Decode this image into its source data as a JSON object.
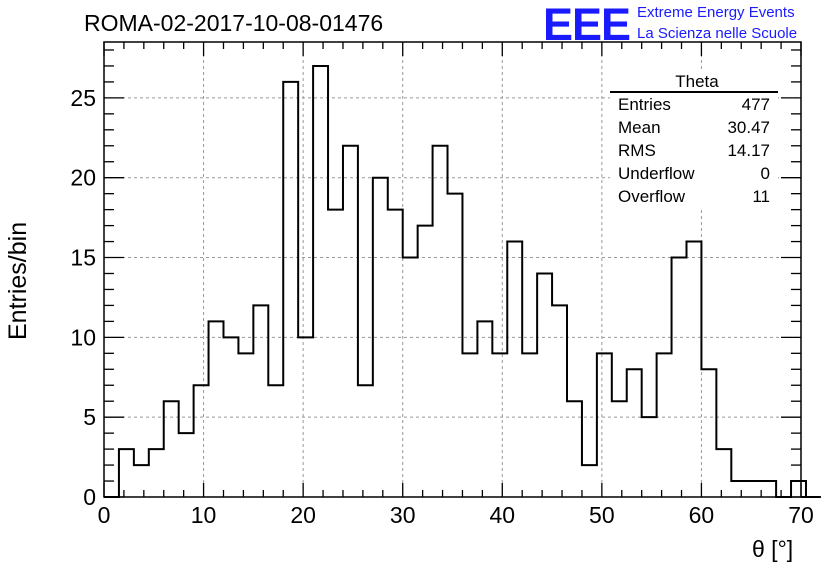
{
  "header": {
    "run_title": "ROMA-02-2017-10-08-01476",
    "logo_text": "EEE",
    "logo_line1": "Extreme Energy Events",
    "logo_line2": "La Scienza nelle Scuole"
  },
  "stats_box": {
    "title": "Theta",
    "rows": [
      {
        "label": "Entries",
        "value": "477"
      },
      {
        "label": "Mean",
        "value": "30.47"
      },
      {
        "label": "RMS",
        "value": "14.17"
      },
      {
        "label": "Underflow",
        "value": "0"
      },
      {
        "label": "Overflow",
        "value": "11"
      }
    ]
  },
  "chart_data": {
    "type": "bar",
    "histogram": true,
    "xlabel": "θ [°]",
    "ylabel": "Entries/bin",
    "xlim": [
      0,
      70
    ],
    "ylim": [
      0,
      28.5
    ],
    "x_ticks": [
      0,
      10,
      20,
      30,
      40,
      50,
      60,
      70
    ],
    "y_ticks": [
      0,
      5,
      10,
      15,
      20,
      25
    ],
    "grid": true,
    "bin_width": 1.5,
    "bin_start": 0,
    "values": [
      0,
      3,
      2,
      3,
      6,
      4,
      7,
      11,
      10,
      9,
      12,
      7,
      26,
      10,
      27,
      18,
      22,
      7,
      20,
      18,
      15,
      17,
      22,
      19,
      9,
      11,
      9,
      16,
      9,
      14,
      12,
      6,
      2,
      9,
      6,
      8,
      5,
      9,
      15,
      16,
      8,
      3,
      1,
      1,
      1,
      0,
      1,
      0
    ],
    "line_color": "#000000"
  }
}
